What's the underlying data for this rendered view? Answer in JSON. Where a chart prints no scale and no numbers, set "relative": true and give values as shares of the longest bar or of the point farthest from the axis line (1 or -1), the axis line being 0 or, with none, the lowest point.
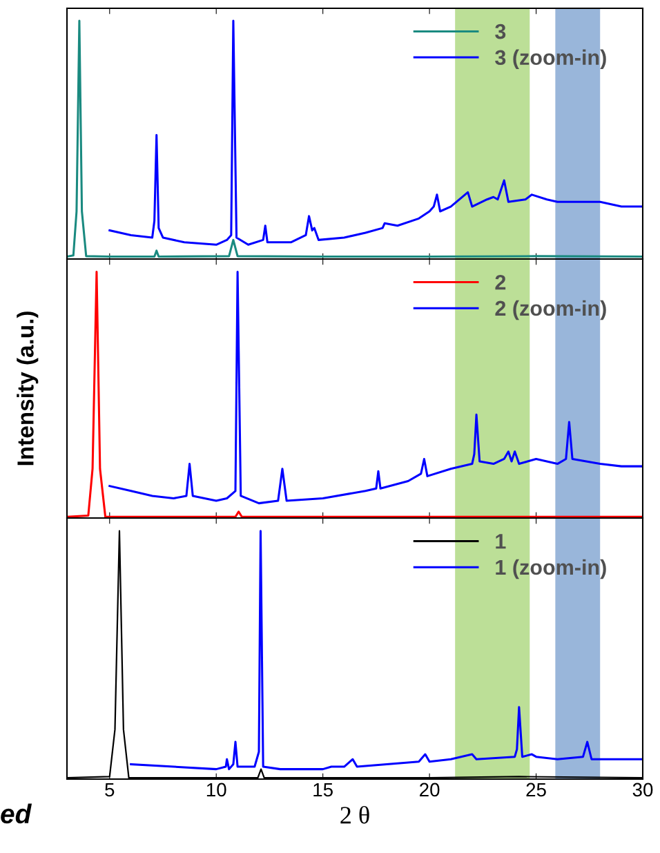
{
  "chart_data": [
    {
      "type": "line",
      "relative": true,
      "xlim": [
        3,
        30
      ],
      "xticks": [
        5,
        10,
        15,
        20,
        25,
        30
      ],
      "tick_labels": false,
      "legend": "top right",
      "grid": false,
      "bands": [
        {
          "axis": "x",
          "from": 21.2,
          "to": 24.7,
          "color": "#b5dc8c"
        },
        {
          "axis": "x",
          "from": 25.9,
          "to": 28.0,
          "color": "#8eaed6"
        }
      ],
      "series": [
        {
          "name": "3",
          "color": "#1a8a80",
          "x": [
            3.0,
            3.3,
            3.45,
            3.58,
            3.7,
            3.9,
            5,
            7.1,
            7.2,
            7.3,
            10.6,
            10.8,
            11.0,
            15,
            20,
            25,
            30
          ],
          "values": [
            0.01,
            0.015,
            0.2,
            1.0,
            0.2,
            0.012,
            0.01,
            0.01,
            0.035,
            0.01,
            0.012,
            0.08,
            0.012,
            0.01,
            0.01,
            0.012,
            0.01
          ]
        },
        {
          "name": "3 (zoom-in)",
          "color": "#0000ff",
          "x": [
            5,
            6,
            7,
            7.1,
            7.2,
            7.3,
            7.5,
            8.5,
            10,
            10.5,
            10.7,
            10.8,
            10.95,
            11.5,
            12.2,
            12.3,
            12.4,
            13.5,
            14.2,
            14.35,
            14.5,
            14.6,
            14.8,
            16,
            17,
            17.8,
            17.9,
            18.5,
            19.5,
            20,
            20.2,
            20.35,
            20.5,
            21,
            21.8,
            22,
            22.7,
            23,
            23.2,
            23.5,
            23.7,
            24.5,
            24.8,
            25.5,
            26,
            27,
            28,
            29,
            30
          ],
          "values": [
            0.12,
            0.1,
            0.09,
            0.16,
            0.52,
            0.13,
            0.09,
            0.07,
            0.06,
            0.08,
            0.1,
            1.0,
            0.09,
            0.06,
            0.08,
            0.14,
            0.07,
            0.07,
            0.1,
            0.18,
            0.12,
            0.13,
            0.08,
            0.09,
            0.11,
            0.13,
            0.15,
            0.14,
            0.17,
            0.2,
            0.22,
            0.27,
            0.2,
            0.22,
            0.28,
            0.22,
            0.25,
            0.26,
            0.25,
            0.33,
            0.24,
            0.25,
            0.27,
            0.25,
            0.24,
            0.24,
            0.24,
            0.22,
            0.22
          ]
        }
      ]
    },
    {
      "type": "line",
      "relative": true,
      "ylabel": "Intensity (a.u.)",
      "xlim": [
        3,
        30
      ],
      "xticks": [
        5,
        10,
        15,
        20,
        25,
        30
      ],
      "tick_labels": false,
      "legend": "top right",
      "grid": false,
      "bands": [
        {
          "axis": "x",
          "from": 21.2,
          "to": 24.7,
          "color": "#b5dc8c"
        },
        {
          "axis": "x",
          "from": 25.9,
          "to": 28.0,
          "color": "#8eaed6"
        }
      ],
      "series": [
        {
          "name": "2",
          "color": "#ff0000",
          "x": [
            3.0,
            4.0,
            4.2,
            4.39,
            4.55,
            4.8,
            10.9,
            11.05,
            11.2,
            20,
            30
          ],
          "values": [
            0.005,
            0.01,
            0.2,
            1.0,
            0.2,
            0.005,
            0.005,
            0.026,
            0.005,
            0.005,
            0.005
          ]
        },
        {
          "name": "2 (zoom-in)",
          "color": "#0000ff",
          "x": [
            5,
            6,
            7,
            8,
            8.6,
            8.75,
            8.9,
            10,
            10.5,
            10.9,
            11.0,
            11.15,
            12,
            12.9,
            13.1,
            13.3,
            15,
            17,
            17.5,
            17.6,
            17.7,
            19,
            19.6,
            19.75,
            19.9,
            21,
            22,
            22.1,
            22.2,
            22.35,
            23,
            23.5,
            23.7,
            23.85,
            24,
            24.2,
            25,
            26,
            26.4,
            26.55,
            26.7,
            28,
            29,
            30
          ],
          "values": [
            0.13,
            0.11,
            0.09,
            0.08,
            0.09,
            0.22,
            0.09,
            0.07,
            0.08,
            0.11,
            1.0,
            0.09,
            0.06,
            0.07,
            0.2,
            0.07,
            0.08,
            0.11,
            0.12,
            0.19,
            0.12,
            0.15,
            0.18,
            0.24,
            0.17,
            0.2,
            0.22,
            0.26,
            0.42,
            0.23,
            0.22,
            0.24,
            0.27,
            0.23,
            0.27,
            0.22,
            0.24,
            0.22,
            0.24,
            0.39,
            0.24,
            0.22,
            0.21,
            0.21
          ]
        }
      ]
    },
    {
      "type": "line",
      "relative": true,
      "xlabel": "2 θ",
      "xlim": [
        3,
        30
      ],
      "xticks": [
        5,
        10,
        15,
        20,
        25,
        30
      ],
      "tick_labels": "x",
      "legend": "top right",
      "grid": false,
      "annotations": [
        "ed"
      ],
      "bands": [
        {
          "axis": "x",
          "from": 21.2,
          "to": 24.7,
          "color": "#b5dc8c"
        },
        {
          "axis": "x",
          "from": 25.9,
          "to": 28.0,
          "color": "#8eaed6"
        }
      ],
      "series": [
        {
          "name": "1",
          "color": "#000000",
          "x": [
            3.0,
            5.0,
            5.25,
            5.46,
            5.65,
            5.9,
            11.95,
            12.1,
            12.25,
            20,
            24.2,
            30
          ],
          "values": [
            0.005,
            0.01,
            0.2,
            1.0,
            0.2,
            0.005,
            0.005,
            0.04,
            0.005,
            0.005,
            0.01,
            0.005
          ]
        },
        {
          "name": "1 (zoom-in)",
          "color": "#0000ff",
          "x": [
            6,
            8,
            10,
            10.45,
            10.5,
            10.6,
            10.8,
            10.9,
            11.0,
            11.8,
            12.0,
            12.08,
            12.2,
            13,
            15,
            15.4,
            16,
            16.4,
            16.6,
            18,
            19.5,
            19.8,
            20,
            21,
            22,
            22.2,
            24,
            24.1,
            24.2,
            24.35,
            24.8,
            25,
            26,
            27.2,
            27.4,
            27.6,
            29,
            30
          ],
          "values": [
            0.06,
            0.05,
            0.04,
            0.05,
            0.08,
            0.04,
            0.06,
            0.15,
            0.05,
            0.05,
            0.11,
            1.0,
            0.05,
            0.04,
            0.04,
            0.05,
            0.05,
            0.08,
            0.05,
            0.06,
            0.07,
            0.1,
            0.07,
            0.08,
            0.1,
            0.08,
            0.09,
            0.12,
            0.29,
            0.09,
            0.1,
            0.09,
            0.08,
            0.09,
            0.15,
            0.08,
            0.08,
            0.08
          ]
        }
      ]
    }
  ]
}
